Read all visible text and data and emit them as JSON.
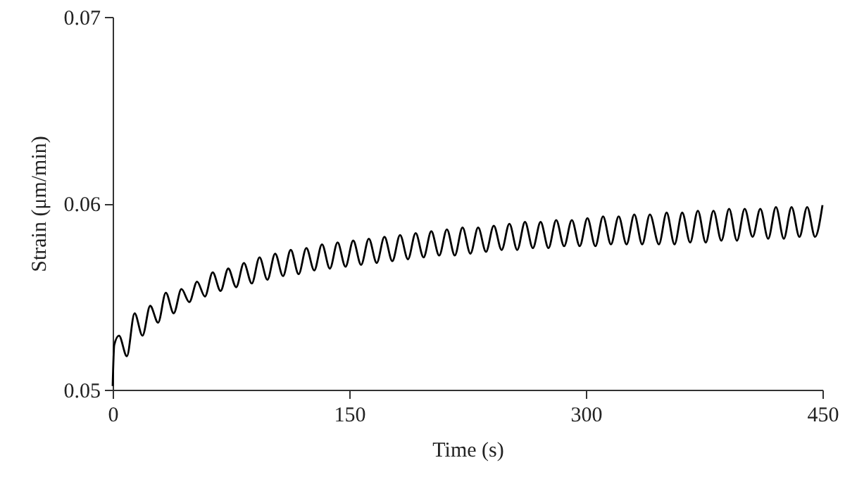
{
  "chart_data": {
    "type": "line",
    "xlabel": "Time (s)",
    "ylabel": "Strain (μm/min)",
    "xlim": [
      0,
      450
    ],
    "xticks": [
      0,
      150,
      300,
      450
    ],
    "ylim": [
      0.05,
      0.07
    ],
    "yticks": [
      0.05,
      0.06,
      0.07
    ],
    "grid": false,
    "marker": "none",
    "line_style": "solid",
    "series": [
      {
        "color": "#000000",
        "x": [
          0,
          1,
          4,
          9,
          13.9,
          18.9,
          23.8,
          28.8,
          33.7,
          38.7,
          43.6,
          48.6,
          53.5,
          58.5,
          63.4,
          68.4,
          73.3,
          78.3,
          83.2,
          88.2,
          93.1,
          98.1,
          103,
          108,
          112.9,
          117.9,
          122.8,
          127.8,
          132.7,
          137.7,
          142.6,
          147.6,
          152.5,
          157.5,
          162.4,
          167.4,
          172.3,
          177.3,
          182.2,
          187.2,
          192.1,
          197.1,
          202,
          207,
          211.9,
          216.9,
          221.8,
          226.8,
          231.7,
          236.7,
          241.6,
          246.6,
          251.5,
          256.5,
          261.4,
          266.4,
          271.3,
          276.3,
          281.2,
          286.2,
          291.1,
          296.1,
          301,
          306,
          310.9,
          315.9,
          320.8,
          325.8,
          330.7,
          335.7,
          340.6,
          346.3,
          351.2,
          356.2,
          361.1,
          366.1,
          371,
          376,
          380.9,
          385.9,
          390.8,
          395.8,
          400.7,
          405.7,
          410.6,
          415.6,
          420.5,
          425.5,
          430.4,
          435.4,
          440.3,
          445.3,
          450
        ],
        "values": [
          0.0502,
          0.0524,
          0.0529,
          0.0518,
          0.0541,
          0.0529,
          0.0545,
          0.0536,
          0.0552,
          0.0541,
          0.0554,
          0.0547,
          0.0558,
          0.055,
          0.0563,
          0.0553,
          0.0565,
          0.0555,
          0.0568,
          0.0557,
          0.0571,
          0.0559,
          0.0573,
          0.0561,
          0.0575,
          0.0562,
          0.0576,
          0.0564,
          0.0578,
          0.0565,
          0.0579,
          0.0566,
          0.058,
          0.0567,
          0.0581,
          0.0568,
          0.0582,
          0.0569,
          0.0583,
          0.057,
          0.0584,
          0.0571,
          0.0585,
          0.0572,
          0.0586,
          0.0572,
          0.0587,
          0.0573,
          0.0587,
          0.0574,
          0.0588,
          0.0575,
          0.0589,
          0.0575,
          0.059,
          0.0576,
          0.059,
          0.0576,
          0.0591,
          0.0577,
          0.0591,
          0.0577,
          0.0592,
          0.0577,
          0.0593,
          0.0578,
          0.0593,
          0.0578,
          0.0594,
          0.0578,
          0.0594,
          0.0578,
          0.0595,
          0.0578,
          0.0595,
          0.0579,
          0.0596,
          0.0579,
          0.0596,
          0.058,
          0.0597,
          0.058,
          0.0597,
          0.0582,
          0.0597,
          0.0581,
          0.0598,
          0.0581,
          0.0598,
          0.0582,
          0.0598,
          0.0582,
          0.0599
        ]
      }
    ]
  }
}
